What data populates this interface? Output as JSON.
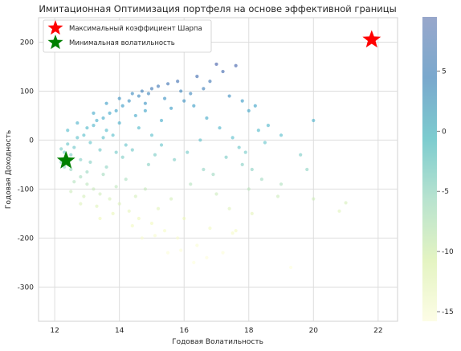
{
  "chart_data": {
    "type": "scatter",
    "title": "Имитационная Оптимизация портфеля на основе эффективной границы",
    "xlabel": "Годовая Волатильность",
    "ylabel": "Годовая Доходность",
    "xlim": [
      11.5,
      22.6
    ],
    "ylim": [
      -370,
      250
    ],
    "xticks": [
      12,
      14,
      16,
      18,
      20,
      22
    ],
    "yticks": [
      -300,
      -200,
      -100,
      0,
      100,
      200
    ],
    "grid": true,
    "legend_position": "top-left",
    "colorbar": {
      "colormap": "YlGnBu",
      "range": [
        -15.8,
        9.5
      ],
      "ticks": [
        -15,
        -10,
        -5,
        0,
        5
      ]
    },
    "special_points": [
      {
        "name": "Максимальный коэффициент Шарпа",
        "x": 21.8,
        "y": 205,
        "marker": "star",
        "color": "#ff0000"
      },
      {
        "name": "Минимальная волатильность",
        "x": 12.35,
        "y": -42,
        "marker": "star",
        "color": "#008000"
      }
    ],
    "scatter_points": [
      [
        12.2,
        -18,
        -3.0
      ],
      [
        12.3,
        -25,
        -2.4
      ],
      [
        12.4,
        -8,
        -1.8
      ],
      [
        12.5,
        -30,
        -3.2
      ],
      [
        12.6,
        -15,
        -2.0
      ],
      [
        12.7,
        5,
        -1.0
      ],
      [
        12.8,
        -40,
        -3.6
      ],
      [
        12.9,
        10,
        -0.6
      ],
      [
        13.0,
        25,
        0.2
      ],
      [
        13.1,
        -5,
        -1.4
      ],
      [
        13.2,
        30,
        0.6
      ],
      [
        13.3,
        40,
        1.2
      ],
      [
        13.4,
        -20,
        -2.2
      ],
      [
        13.5,
        45,
        1.6
      ],
      [
        13.6,
        20,
        0.0
      ],
      [
        13.7,
        55,
        2.4
      ],
      [
        13.8,
        10,
        -0.6
      ],
      [
        13.9,
        60,
        2.8
      ],
      [
        14.0,
        35,
        1.2
      ],
      [
        14.1,
        70,
        3.5
      ],
      [
        14.2,
        -10,
        -1.6
      ],
      [
        14.3,
        80,
        4.2
      ],
      [
        14.5,
        50,
        2.2
      ],
      [
        14.6,
        90,
        5.0
      ],
      [
        14.7,
        100,
        5.6
      ],
      [
        14.8,
        75,
        4.0
      ],
      [
        14.9,
        95,
        5.2
      ],
      [
        15.0,
        105,
        6.0
      ],
      [
        15.1,
        -30,
        -3.0
      ],
      [
        15.2,
        110,
        6.2
      ],
      [
        15.3,
        40,
        1.6
      ],
      [
        15.5,
        115,
        6.5
      ],
      [
        15.6,
        65,
        3.4
      ],
      [
        15.8,
        120,
        6.8
      ],
      [
        16.0,
        80,
        4.2
      ],
      [
        16.2,
        95,
        5.0
      ],
      [
        16.4,
        130,
        7.2
      ],
      [
        16.6,
        105,
        5.6
      ],
      [
        16.8,
        120,
        6.2
      ],
      [
        17.0,
        155,
        8.4
      ],
      [
        17.2,
        140,
        7.5
      ],
      [
        17.4,
        90,
        4.5
      ],
      [
        17.6,
        152,
        8.0
      ],
      [
        17.8,
        80,
        3.6
      ],
      [
        18.0,
        60,
        2.4
      ],
      [
        18.1,
        -60,
        -4.2
      ],
      [
        18.3,
        20,
        0.0
      ],
      [
        18.5,
        -5,
        -1.4
      ],
      [
        19.0,
        10,
        -0.4
      ],
      [
        19.6,
        -30,
        -3.0
      ],
      [
        20.0,
        40,
        1.0
      ],
      [
        12.5,
        -60,
        -5.0
      ],
      [
        12.8,
        -75,
        -6.0
      ],
      [
        13.0,
        -90,
        -7.2
      ],
      [
        13.2,
        -100,
        -8.0
      ],
      [
        13.4,
        -110,
        -8.6
      ],
      [
        13.5,
        -70,
        -5.8
      ],
      [
        13.7,
        -120,
        -9.4
      ],
      [
        13.9,
        -95,
        -7.4
      ],
      [
        14.0,
        -130,
        -10.0
      ],
      [
        14.2,
        -80,
        -6.2
      ],
      [
        14.3,
        -145,
        -11.0
      ],
      [
        14.5,
        -115,
        -9.0
      ],
      [
        14.6,
        -160,
        -12.0
      ],
      [
        14.8,
        -100,
        -7.8
      ],
      [
        15.0,
        -170,
        -12.6
      ],
      [
        15.2,
        -140,
        -10.6
      ],
      [
        15.4,
        -185,
        -13.4
      ],
      [
        15.6,
        -120,
        -9.0
      ],
      [
        15.8,
        -200,
        -14.2
      ],
      [
        16.0,
        -160,
        -11.8
      ],
      [
        16.2,
        -90,
        -6.8
      ],
      [
        16.4,
        -215,
        -14.8
      ],
      [
        16.6,
        -60,
        -4.6
      ],
      [
        16.8,
        -180,
        -12.8
      ],
      [
        17.0,
        -110,
        -8.2
      ],
      [
        17.2,
        -230,
        -15.2
      ],
      [
        17.4,
        -140,
        -10.2
      ],
      [
        17.6,
        -185,
        -13.0
      ],
      [
        17.8,
        -50,
        -3.8
      ],
      [
        18.0,
        -100,
        -7.2
      ],
      [
        18.4,
        -80,
        -5.6
      ],
      [
        18.9,
        -115,
        -8.2
      ],
      [
        19.3,
        -260,
        -15.6
      ],
      [
        20.0,
        -120,
        -8.6
      ],
      [
        20.8,
        -145,
        -10.4
      ],
      [
        21.0,
        -128,
        -9.2
      ],
      [
        13.1,
        -45,
        -3.8
      ],
      [
        13.6,
        -55,
        -4.4
      ],
      [
        14.1,
        -35,
        -3.2
      ],
      [
        14.4,
        -20,
        -2.2
      ],
      [
        14.9,
        -50,
        -4.0
      ],
      [
        15.3,
        -10,
        -1.6
      ],
      [
        15.7,
        -40,
        -3.4
      ],
      [
        16.1,
        -25,
        -2.4
      ],
      [
        16.5,
        0,
        -1.0
      ],
      [
        16.9,
        -70,
        -5.4
      ],
      [
        17.3,
        -35,
        -3.0
      ],
      [
        17.7,
        -15,
        -1.8
      ],
      [
        12.9,
        -115,
        -9.0
      ],
      [
        13.3,
        -135,
        -10.4
      ],
      [
        13.8,
        -150,
        -11.4
      ],
      [
        14.4,
        -175,
        -12.8
      ],
      [
        15.1,
        -195,
        -14.0
      ],
      [
        15.9,
        -225,
        -15.2
      ],
      [
        16.7,
        -240,
        -15.5
      ],
      [
        12.3,
        -55,
        -4.6
      ],
      [
        12.6,
        -85,
        -6.8
      ],
      [
        13.0,
        -65,
        -5.2
      ],
      [
        12.7,
        35,
        0.8
      ],
      [
        13.2,
        55,
        2.0
      ],
      [
        13.6,
        75,
        3.4
      ],
      [
        14.0,
        85,
        4.2
      ],
      [
        14.4,
        95,
        4.8
      ],
      [
        14.8,
        60,
        2.8
      ],
      [
        15.4,
        85,
        4.2
      ],
      [
        15.9,
        100,
        5.2
      ],
      [
        16.3,
        70,
        3.4
      ],
      [
        16.7,
        45,
        1.8
      ],
      [
        17.1,
        25,
        0.6
      ],
      [
        17.5,
        5,
        -0.6
      ],
      [
        17.9,
        -25,
        -2.6
      ],
      [
        18.2,
        70,
        3.0
      ],
      [
        18.6,
        30,
        0.4
      ],
      [
        19.8,
        -60,
        -4.4
      ],
      [
        19.0,
        -90,
        -6.4
      ],
      [
        18.1,
        -150,
        -10.8
      ],
      [
        17.5,
        -190,
        -13.4
      ],
      [
        16.3,
        -250,
        -15.6
      ],
      [
        15.5,
        -230,
        -15.2
      ],
      [
        12.4,
        20,
        -0.2
      ],
      [
        12.2,
        -45,
        -4.0
      ],
      [
        12.5,
        -105,
        -8.2
      ],
      [
        12.8,
        -130,
        -10.2
      ],
      [
        13.4,
        -160,
        -12.2
      ],
      [
        14.7,
        -200,
        -14.4
      ],
      [
        15.0,
        10,
        -0.8
      ],
      [
        14.6,
        25,
        0.2
      ],
      [
        13.9,
        -25,
        -2.4
      ],
      [
        13.5,
        5,
        -1.0
      ]
    ]
  }
}
